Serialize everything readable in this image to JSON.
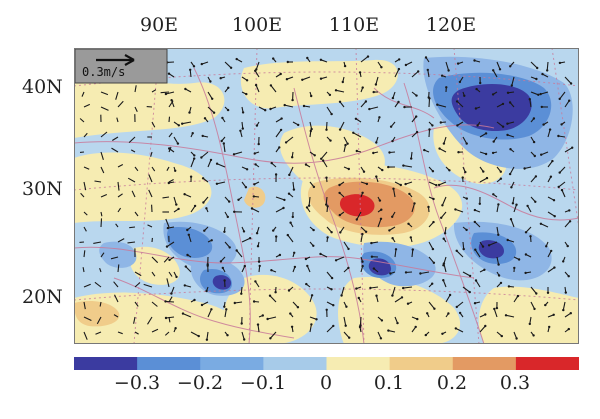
{
  "map": {
    "lon_labels": [
      "90E",
      "100E",
      "110E",
      "120E"
    ],
    "lat_labels": [
      "40N",
      "30N",
      "20N"
    ],
    "reference_vector": {
      "label": "0.3m/s"
    },
    "colors": {
      "ocean_low": "#3b3ba0",
      "neg_mid": "#5b8fd6",
      "neg_low": "#8fb6e6",
      "neutral_neg": "#b9d7ee",
      "neutral_pos": "#f6ecb2",
      "pos_low": "#f0cc8a",
      "pos_mid": "#e39a63",
      "pos_high": "#d9272a"
    }
  },
  "colorbar": {
    "tick_labels": [
      "−0.3",
      "−0.2",
      "−0.1",
      "0",
      "0.1",
      "0.2",
      "0.3"
    ],
    "colors": [
      "#3b3ba0",
      "#5b8fd6",
      "#7aabe2",
      "#a7cbe9",
      "#f6ecb2",
      "#f0cc8a",
      "#e39a63",
      "#d9272a"
    ]
  }
}
